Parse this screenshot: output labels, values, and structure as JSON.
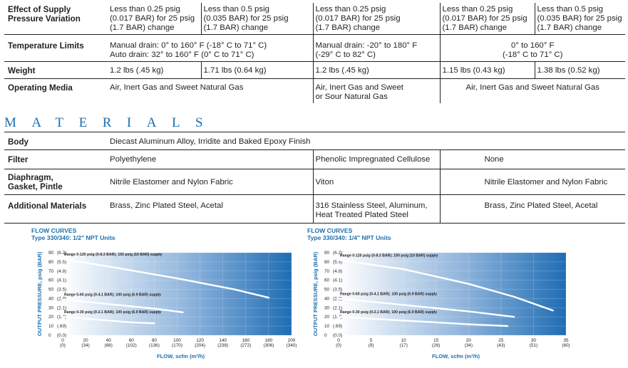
{
  "specs": {
    "rows": [
      {
        "label": "Effect of Supply\nPressure Variation",
        "cells": [
          "Less than 0.25 psig\n(0.017 BAR) for 25 psig\n(1.7 BAR) change",
          "Less than 0.5 psig\n(0.035 BAR) for 25 psig\n(1.7 BAR) change",
          "Less than 0.25 psig\n(0.017 BAR) for 25 psig\n(1.7 BAR) change",
          "Less than 0.25 psig\n(0.017 BAR) for 25 psig\n(1.7 BAR) change",
          "Less than 0.5 psig\n(0.035 BAR) for 25 psig\n(1.7 BAR) change"
        ]
      },
      {
        "label": "Temperature Limits",
        "cell_a": "Manual drain: 0° to 160° F (-18° C to 71° C)\nAuto drain: 32° to 160° F (0° C to 71° C)",
        "cell_b": "Manual drain: -20° to 180° F\n(-29° C to 82° C)",
        "cell_c": "0° to 160° F\n(-18° C to 71° C)"
      },
      {
        "label": "Weight",
        "cells": [
          "1.2 lbs (.45 kg)",
          "1.71 lbs (0.64 kg)",
          "1.2 lbs (.45 kg)",
          "1.15 lbs (0.43 kg)",
          "1.38 lbs (0.52 kg)"
        ]
      },
      {
        "label": "Operating Media",
        "cell_a": "Air, Inert Gas and Sweet Natural Gas",
        "cell_b": "Air, Inert Gas and Sweet\nor Sour Natural Gas",
        "cell_c": "Air, Inert Gas and Sweet Natural Gas"
      }
    ]
  },
  "materials": {
    "heading": "MATERIALS",
    "rows": [
      {
        "label": "Body",
        "cell": "Diecast Aluminum Alloy, Irridite and Baked Epoxy Finish"
      },
      {
        "label": "Filter",
        "a": "Polyethylene",
        "b": "Phenolic Impregnated Cellulose",
        "c": "None"
      },
      {
        "label": "Diaphragm,\nGasket, Pintle",
        "a": "Nitrile Elastomer and Nylon Fabric",
        "b": "Viton",
        "c": "Nitrile Elastomer and Nylon Fabric"
      },
      {
        "label": "Additional Materials",
        "a": "Brass, Zinc Plated Steel, Acetal",
        "b": "316 Stainless Steel, Aluminum,\nHeat Treated Plated Steel",
        "c": "Brass, Zinc Plated Steel, Acetal"
      }
    ]
  },
  "chart_data": [
    {
      "type": "line",
      "title": "FLOW CURVES",
      "subtitle": "Type 330/340: 1/2\" NPT Units",
      "xlabel": "FLOW, scfm (m³/h)",
      "ylabel": "OUTPUT PRESSURE, psig (BAR)",
      "xlim": [
        0,
        200
      ],
      "ylim": [
        0,
        90
      ],
      "x_ticks": [
        "0",
        "20",
        "40",
        "60",
        "80",
        "100",
        "120",
        "140",
        "160",
        "180",
        "200"
      ],
      "x_ticks_alt": [
        "(0)",
        "(34)",
        "(68)",
        "(102)",
        "(136)",
        "(170)",
        "(204)",
        "(238)",
        "(272)",
        "(306)",
        "(340)"
      ],
      "y_ticks": [
        "0",
        "10",
        "20",
        "30",
        "40",
        "50",
        "60",
        "70",
        "80",
        "90"
      ],
      "y_ticks_alt": [
        "(0.0)",
        "(.69)",
        "(1.4)",
        "(2.1)",
        "(2.8)",
        "(3.5)",
        "(4.1)",
        "(4.8)",
        "(5.5)",
        "(6.2)"
      ],
      "series": [
        {
          "name": "Range 0-120 psig (0-8.3 BAR); 150 psig (10 BAR) supply",
          "x": [
            0,
            40,
            100,
            150,
            180
          ],
          "y": [
            83,
            75,
            62,
            50,
            41
          ]
        },
        {
          "name": "Range 0-60 psig (0-4.1 BAR); 100 psig (6.9 BAR) supply",
          "x": [
            0,
            40,
            80,
            105
          ],
          "y": [
            39,
            34,
            29,
            25
          ]
        },
        {
          "name": "Range 0-30 psig (0-2.1 BAR); 100 psig (6.9 BAR) supply",
          "x": [
            0,
            30,
            60,
            80
          ],
          "y": [
            20,
            17,
            14,
            13
          ]
        }
      ]
    },
    {
      "type": "line",
      "title": "FLOW CURVES",
      "subtitle": "Type 330/340: 1/4\" NPT Units",
      "xlabel": "FLOW, scfm (m³/h)",
      "ylabel": "OUTPUT PRESSURE, psig (BAR)",
      "xlim": [
        0,
        35
      ],
      "ylim": [
        0,
        90
      ],
      "x_ticks": [
        "0",
        "5",
        "10",
        "15",
        "20",
        "25",
        "30",
        "35"
      ],
      "x_ticks_alt": [
        "(0)",
        "(9)",
        "(17)",
        "(26)",
        "(34)",
        "(43)",
        "(51)",
        "(60)"
      ],
      "y_ticks": [
        "0",
        "10",
        "20",
        "30",
        "40",
        "50",
        "60",
        "70",
        "80",
        "90"
      ],
      "y_ticks_alt": [
        "(0.0)",
        "(.69)",
        "(1.4)",
        "(2.1)",
        "(2.8)",
        "(3.5)",
        "(4.1)",
        "(4.8)",
        "(5.5)",
        "(6.2)"
      ],
      "series": [
        {
          "name": "Range 0-120 psig (0-8.3 BAR); 150 psig (10 BAR) supply",
          "x": [
            0,
            10,
            20,
            27,
            33
          ],
          "y": [
            82,
            72,
            56,
            42,
            27
          ]
        },
        {
          "name": "Range 0-60 psig (0-4.1 BAR); 100 psig (6.9 BAR) supply",
          "x": [
            0,
            10,
            20,
            27
          ],
          "y": [
            40,
            33,
            26,
            20
          ]
        },
        {
          "name": "Range 0-30 psig (0-2.1 BAR); 100 psig (6.9 BAR) supply",
          "x": [
            0,
            10,
            20,
            26
          ],
          "y": [
            20,
            16,
            12,
            10
          ]
        }
      ]
    }
  ],
  "colors": {
    "accent": "#1b6fae",
    "chart_dark": "#1f6db4",
    "chart_light": "#ffffff"
  }
}
